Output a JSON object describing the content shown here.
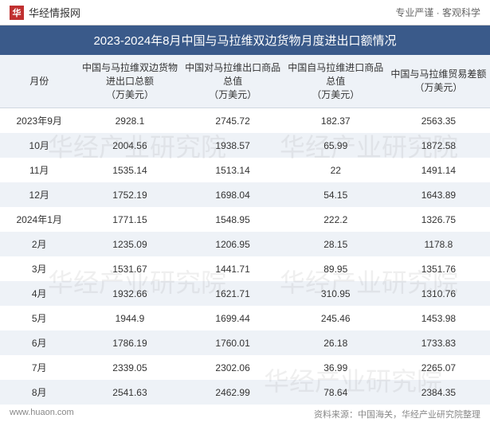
{
  "header": {
    "logo_char": "华",
    "logo_text": "华经情报网",
    "tagline": "专业严谨  ·  客观科学"
  },
  "title": "2023-2024年8月中国与马拉维双边货物月度进出口额情况",
  "table": {
    "columns": [
      "月份",
      "中国与马拉维双边货物进出口总额\n（万美元）",
      "中国对马拉维出口商品总值\n（万美元）",
      "中国自马拉维进口商品总值\n（万美元）",
      "中国与马拉维贸易差额\n（万美元）"
    ],
    "rows": [
      [
        "2023年9月",
        "2928.1",
        "2745.72",
        "182.37",
        "2563.35"
      ],
      [
        "10月",
        "2004.56",
        "1938.57",
        "65.99",
        "1872.58"
      ],
      [
        "11月",
        "1535.14",
        "1513.14",
        "22",
        "1491.14"
      ],
      [
        "12月",
        "1752.19",
        "1698.04",
        "54.15",
        "1643.89"
      ],
      [
        "2024年1月",
        "1771.15",
        "1548.95",
        "222.2",
        "1326.75"
      ],
      [
        "2月",
        "1235.09",
        "1206.95",
        "28.15",
        "1178.8"
      ],
      [
        "3月",
        "1531.67",
        "1441.71",
        "89.95",
        "1351.76"
      ],
      [
        "4月",
        "1932.66",
        "1621.71",
        "310.95",
        "1310.76"
      ],
      [
        "5月",
        "1944.9",
        "1699.44",
        "245.46",
        "1453.98"
      ],
      [
        "6月",
        "1786.19",
        "1760.01",
        "26.18",
        "1733.83"
      ],
      [
        "7月",
        "2339.05",
        "2302.06",
        "36.99",
        "2265.07"
      ],
      [
        "8月",
        "2541.63",
        "2462.99",
        "78.64",
        "2384.35"
      ]
    ],
    "header_bg": "#eef2f7",
    "row_even_bg": "#eef2f7",
    "row_odd_bg": "#ffffff",
    "title_bg": "#3a5a8a",
    "text_color": "#333333",
    "font_size": 12
  },
  "footer": {
    "left": "www.huaon.com",
    "right": "资料来源：中国海关，华经产业研究院整理"
  },
  "watermark": "华经产业研究院"
}
